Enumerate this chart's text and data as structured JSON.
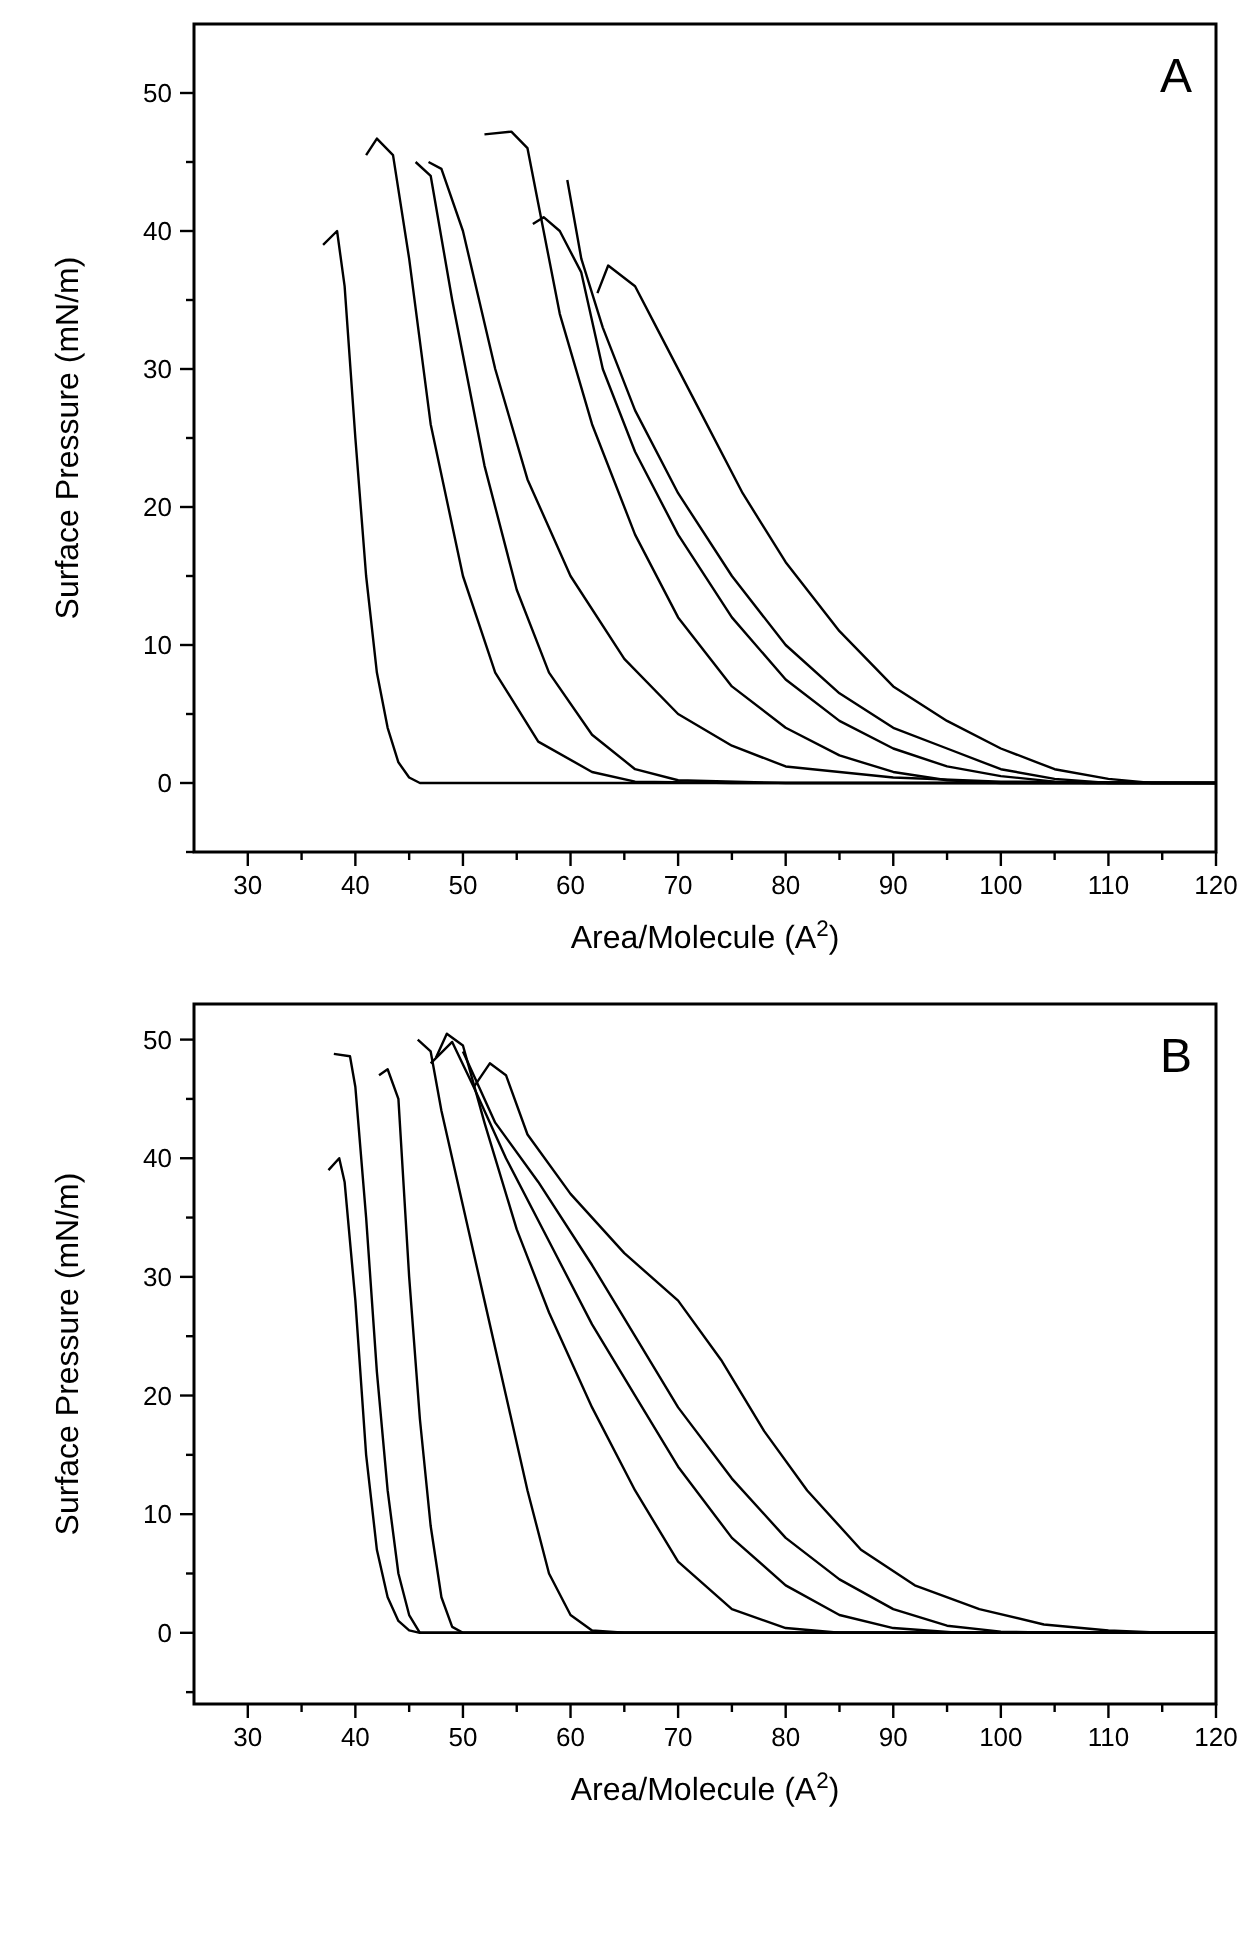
{
  "chart_data": [
    {
      "type": "line",
      "xlabel": "Area/Molecule (A$^{2}$)",
      "ylabel": "Surface Pressure (mN/m)",
      "annotations": [
        "A"
      ],
      "xlim": [
        25,
        120
      ],
      "xticks": [
        30,
        {
          "value": 35,
          "label": null
        },
        40,
        {
          "value": 45,
          "label": null
        },
        50,
        {
          "value": 55,
          "label": null
        },
        60,
        {
          "value": 65,
          "label": null
        },
        70,
        {
          "value": 75,
          "label": null
        },
        80,
        {
          "value": 85,
          "label": null
        },
        90,
        {
          "value": 95,
          "label": null
        },
        100,
        {
          "value": 105,
          "label": null
        },
        110,
        {
          "value": 115,
          "label": null
        },
        120
      ],
      "ylim": [
        -5,
        55
      ],
      "yticks": [
        {
          "value": -5,
          "label": null
        },
        0,
        {
          "value": 5,
          "label": null
        },
        10,
        {
          "value": 15,
          "label": null
        },
        20,
        {
          "value": 25,
          "label": null
        },
        30,
        {
          "value": 35,
          "label": null
        },
        40,
        {
          "value": 45,
          "label": null
        },
        50
      ],
      "series": [
        {
          "color": "#000000",
          "x": [
            37,
            38.3,
            39,
            40,
            41,
            42,
            43,
            44,
            45,
            46,
            120
          ],
          "values": [
            39,
            40,
            36,
            25,
            15,
            8,
            4,
            1.5,
            0.4,
            0,
            0
          ]
        },
        {
          "color": "#000000",
          "x": [
            41,
            42,
            43.5,
            45,
            47,
            50,
            53,
            57,
            62,
            66,
            75,
            120
          ],
          "values": [
            45.5,
            46.7,
            45.5,
            38,
            26,
            15,
            8,
            3,
            0.8,
            0.1,
            0,
            0
          ]
        },
        {
          "color": "#000000",
          "x": [
            45.6,
            47,
            49,
            52,
            55,
            58,
            62,
            66,
            70,
            80,
            120
          ],
          "values": [
            45,
            44,
            35,
            23,
            14,
            8,
            3.5,
            1,
            0.2,
            0,
            0
          ]
        },
        {
          "color": "#000000",
          "x": [
            46.8,
            48,
            50,
            53,
            56,
            60,
            65,
            70,
            75,
            80,
            90,
            100,
            120
          ],
          "values": [
            45,
            44.5,
            40,
            30,
            22,
            15,
            9,
            5,
            2.7,
            1.2,
            0.4,
            0.1,
            0
          ]
        },
        {
          "color": "#000000",
          "x": [
            52,
            54.5,
            56,
            57,
            59,
            62,
            66,
            70,
            75,
            80,
            85,
            90,
            95,
            100,
            120
          ],
          "values": [
            47,
            47.2,
            46,
            42,
            34,
            26,
            18,
            12,
            7,
            4,
            2,
            0.8,
            0.2,
            0,
            0
          ]
        },
        {
          "color": "#000000",
          "x": [
            56.5,
            57.5,
            59,
            61,
            63,
            66,
            70,
            75,
            80,
            85,
            90,
            95,
            100,
            105,
            108,
            120
          ],
          "values": [
            40.5,
            41,
            40,
            37,
            30,
            24,
            18,
            12,
            7.5,
            4.5,
            2.5,
            1.2,
            0.5,
            0.1,
            0,
            0
          ]
        },
        {
          "color": "#000000",
          "x": [
            59.7,
            61,
            63,
            66,
            70,
            75,
            80,
            85,
            90,
            95,
            100,
            105,
            110,
            120
          ],
          "values": [
            43.7,
            38,
            33,
            27,
            21,
            15,
            10,
            6.5,
            4,
            2.5,
            1,
            0.3,
            0,
            0
          ]
        },
        {
          "color": "#000000",
          "x": [
            62.5,
            63.5,
            66,
            68,
            72,
            76,
            80,
            85,
            90,
            95,
            100,
            105,
            110,
            114,
            120
          ],
          "values": [
            35.5,
            37.5,
            36,
            33,
            27,
            21,
            16,
            11,
            7,
            4.5,
            2.5,
            1,
            0.3,
            0,
            0
          ]
        }
      ]
    },
    {
      "type": "line",
      "xlabel": "Area/Molecule (A$^{2}$)",
      "ylabel": "Surface Pressure (mN/m)",
      "annotations": [
        "B"
      ],
      "xlim": [
        25,
        120
      ],
      "xticks": [
        30,
        {
          "value": 35,
          "label": null
        },
        40,
        {
          "value": 45,
          "label": null
        },
        50,
        {
          "value": 55,
          "label": null
        },
        60,
        {
          "value": 65,
          "label": null
        },
        70,
        {
          "value": 75,
          "label": null
        },
        80,
        {
          "value": 85,
          "label": null
        },
        90,
        {
          "value": 95,
          "label": null
        },
        100,
        {
          "value": 105,
          "label": null
        },
        110,
        {
          "value": 115,
          "label": null
        },
        120
      ],
      "ylim": [
        -6,
        53
      ],
      "yticks": [
        {
          "value": -5,
          "label": null
        },
        0,
        {
          "value": 5,
          "label": null
        },
        10,
        {
          "value": 15,
          "label": null
        },
        20,
        {
          "value": 25,
          "label": null
        },
        30,
        {
          "value": 35,
          "label": null
        },
        40,
        {
          "value": 45,
          "label": null
        },
        50
      ],
      "series": [
        {
          "color": "#000000",
          "x": [
            37.5,
            38.5,
            39,
            40,
            41,
            42,
            43,
            44,
            45,
            46,
            120
          ],
          "values": [
            39,
            40,
            38,
            28,
            15,
            7,
            3,
            1,
            0.2,
            0,
            0
          ]
        },
        {
          "color": "#000000",
          "x": [
            38,
            39.5,
            40,
            41,
            42,
            43,
            44,
            45,
            46,
            120
          ],
          "values": [
            48.8,
            48.6,
            46,
            35,
            22,
            12,
            5,
            1.5,
            0,
            0
          ]
        },
        {
          "color": "#000000",
          "x": [
            42.2,
            43,
            44,
            45,
            46,
            47,
            48,
            49,
            50,
            120
          ],
          "values": [
            47,
            47.5,
            45,
            30,
            18,
            9,
            3,
            0.5,
            0,
            0
          ]
        },
        {
          "color": "#000000",
          "x": [
            45.8,
            47,
            48,
            50,
            52,
            54,
            56,
            58,
            60,
            62,
            65,
            120
          ],
          "values": [
            50,
            49,
            44,
            36,
            28,
            20,
            12,
            5,
            1.5,
            0.2,
            0,
            0
          ]
        },
        {
          "color": "#000000",
          "x": [
            47.5,
            48.5,
            50,
            52,
            55,
            58,
            62,
            66,
            70,
            75,
            80,
            85,
            120
          ],
          "values": [
            48.5,
            50.5,
            49.5,
            43,
            34,
            27,
            19,
            12,
            6,
            2,
            0.4,
            0,
            0
          ]
        },
        {
          "color": "#000000",
          "x": [
            47,
            49,
            51,
            54,
            58,
            62,
            66,
            70,
            75,
            80,
            85,
            90,
            96,
            120
          ],
          "values": [
            48,
            49.8,
            46,
            40,
            33,
            26,
            20,
            14,
            8,
            4,
            1.5,
            0.4,
            0,
            0
          ]
        },
        {
          "color": "#000000",
          "x": [
            50,
            53,
            57,
            62,
            66,
            70,
            75,
            80,
            85,
            90,
            95,
            100,
            105,
            120
          ],
          "values": [
            49,
            43,
            38,
            31,
            25,
            19,
            13,
            8,
            4.5,
            2,
            0.6,
            0.1,
            0,
            0
          ]
        },
        {
          "color": "#000000",
          "x": [
            51,
            52.5,
            54,
            56,
            60,
            65,
            70,
            74,
            78,
            82,
            87,
            92,
            98,
            104,
            110,
            115,
            120
          ],
          "values": [
            46,
            48,
            47,
            42,
            37,
            32,
            28,
            23,
            17,
            12,
            7,
            4,
            2,
            0.7,
            0.2,
            0,
            0
          ]
        }
      ]
    }
  ]
}
